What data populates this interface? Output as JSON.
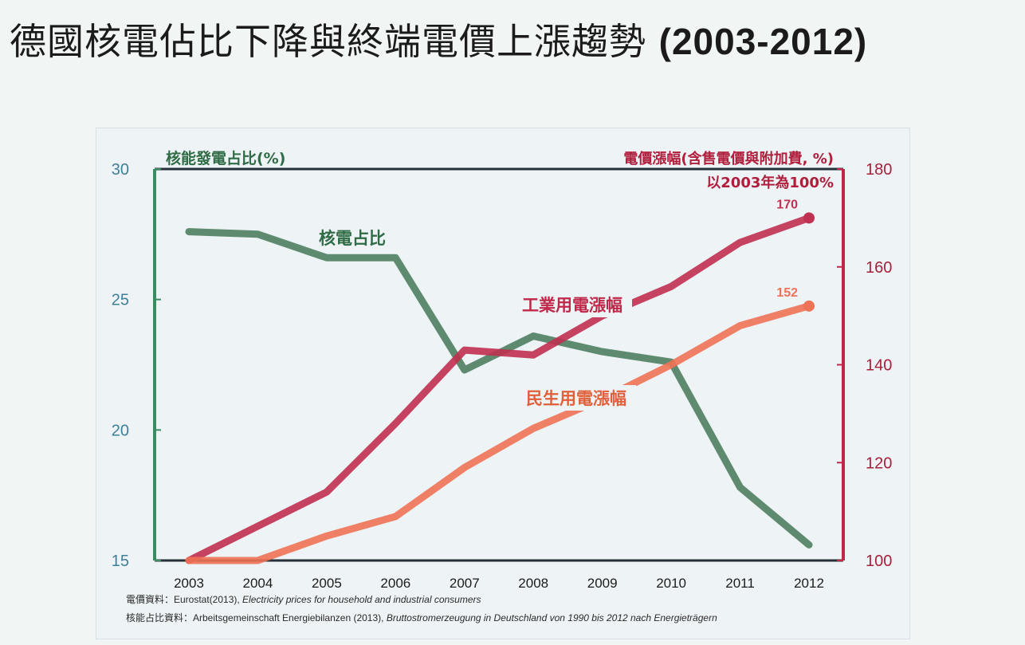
{
  "title_main": "德國核電佔比下降與終端電價上漲趨勢",
  "title_years": "(2003-2012)",
  "chart_data": {
    "type": "line",
    "x": [
      "2003",
      "2004",
      "2005",
      "2006",
      "2007",
      "2008",
      "2009",
      "2010",
      "2011",
      "2012"
    ],
    "left_axis": {
      "label": "核能發電占比(%)",
      "ylim": [
        15,
        30
      ],
      "ticks": [
        "15",
        "20",
        "25",
        "30"
      ]
    },
    "right_axis": {
      "label": "電價漲幅(含售電價與附加費, %)",
      "sublabel": "以2003年為100%",
      "ylim": [
        100,
        180
      ],
      "ticks": [
        "100",
        "120",
        "140",
        "160",
        "180"
      ]
    },
    "series": [
      {
        "name": "核電占比",
        "axis": "left",
        "color": "#4e8060",
        "values": [
          27.6,
          27.5,
          26.6,
          26.6,
          22.3,
          23.6,
          23.0,
          22.6,
          17.8,
          15.6
        ]
      },
      {
        "name": "工業用電漲幅",
        "axis": "right",
        "color": "#c03050",
        "values": [
          100,
          107,
          114,
          128,
          143,
          142,
          150,
          156,
          165,
          170
        ],
        "end_label": "170"
      },
      {
        "name": "民生用電漲幅",
        "axis": "right",
        "color": "#ee7255",
        "values": [
          100,
          100,
          105,
          109,
          119,
          127,
          133,
          140,
          148,
          152
        ],
        "end_label": "152"
      }
    ],
    "grid": false,
    "legend": "inline labels"
  },
  "sources": {
    "price_prefix": "電價資料：Eurostat(2013), ",
    "price_title": "Electricity prices for household and industrial consumers",
    "share_prefix": "核能占比資料：Arbeitsgemeinschaft Energiebilanzen (2013), ",
    "share_title": "Bruttostromerzeugung in Deutschland von 1990 bis 2012 nach Energieträgern"
  }
}
